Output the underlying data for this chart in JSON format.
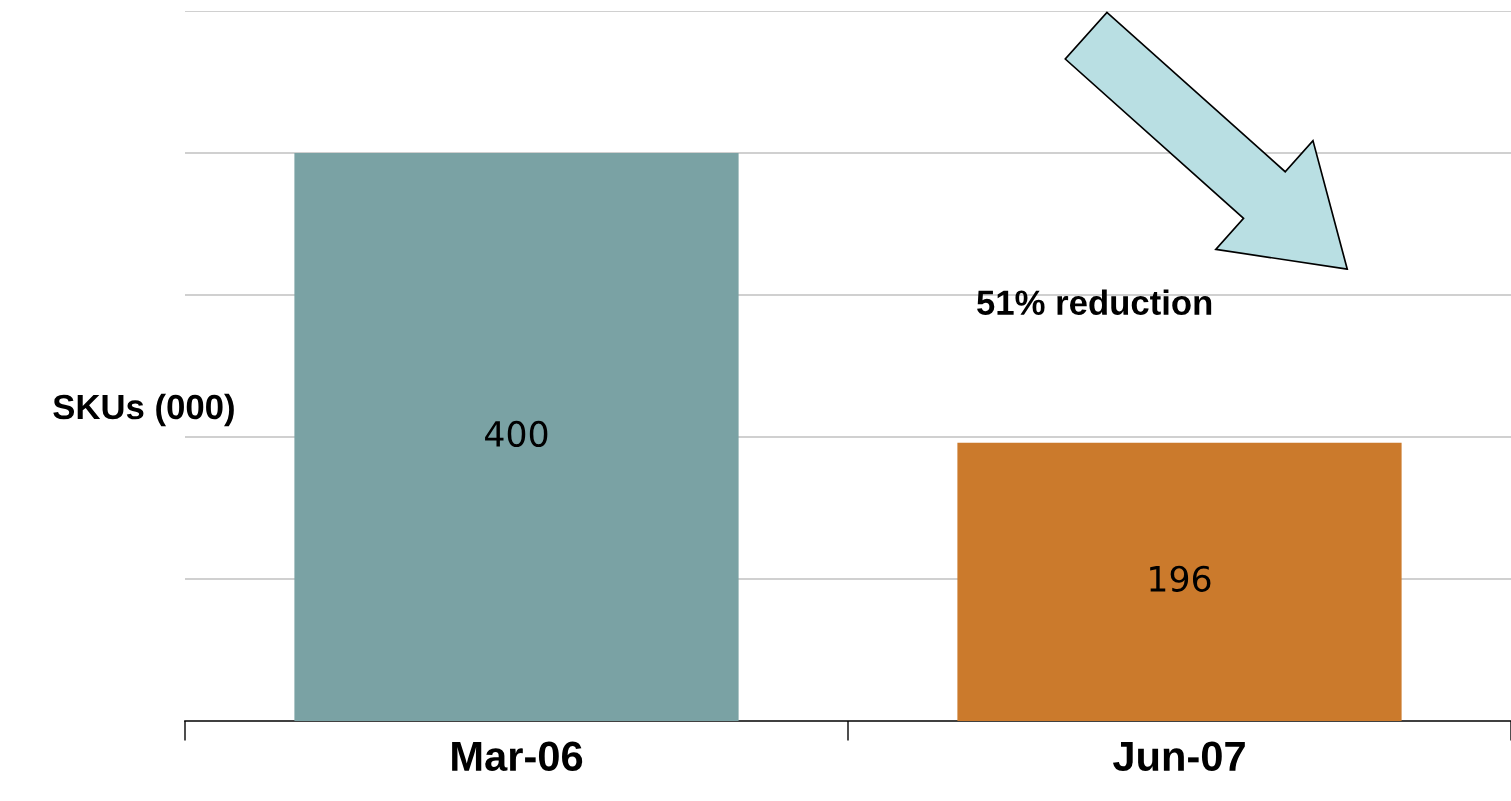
{
  "chart_data": {
    "type": "bar",
    "ylabel": "SKUs (000)",
    "categories": [
      "Mar-06",
      "Jun-07"
    ],
    "values": [
      400,
      196
    ],
    "colors": [
      "#7aa2a4",
      "#cb7a2c"
    ],
    "ylim": [
      0,
      500
    ],
    "yticks": [
      {
        "value": 100,
        "label": null
      },
      {
        "value": 200,
        "label": null
      },
      {
        "value": 300,
        "label": null
      },
      {
        "value": 400,
        "label": null
      },
      {
        "value": 500,
        "label": null
      }
    ],
    "grid": "y",
    "tick_labels": "x",
    "data_labels": true,
    "legend": false,
    "annotations": [
      "51% reduction"
    ]
  }
}
